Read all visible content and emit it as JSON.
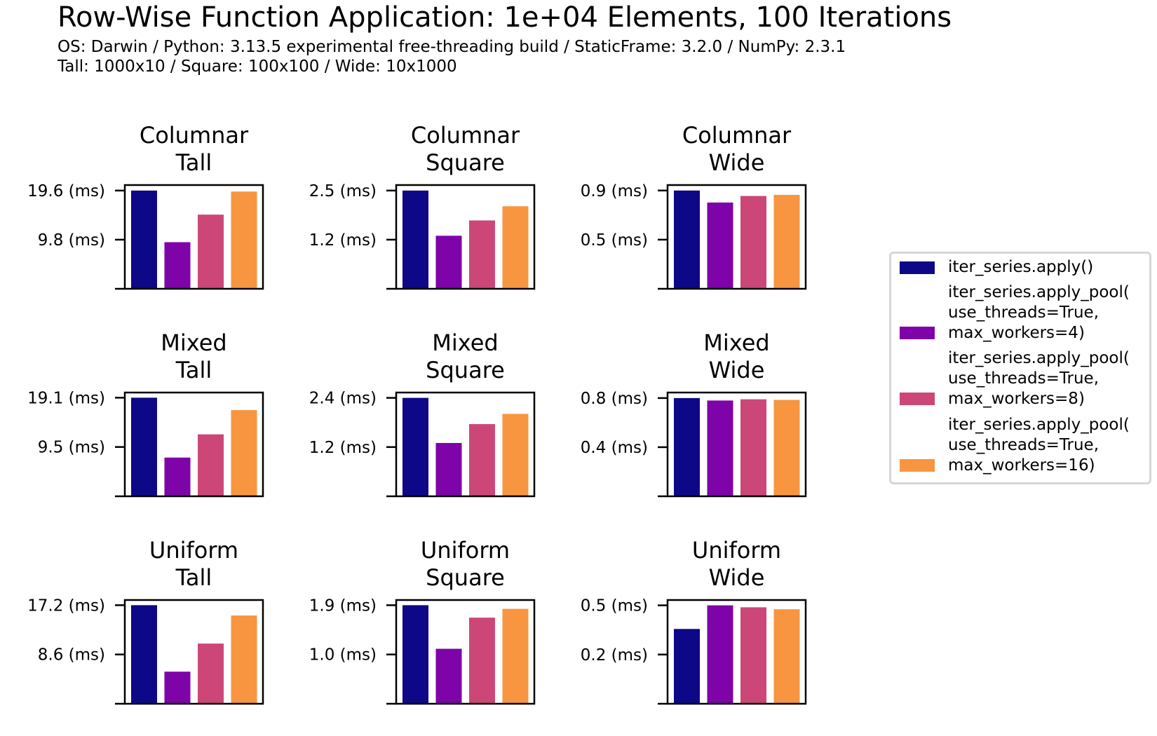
{
  "title": "Row-Wise Function Application: 1e+04 Elements, 100 Iterations",
  "subtitle_line1": "OS: Darwin / Python: 3.13.5 experimental free-threading build / StaticFrame: 3.2.0 / NumPy: 2.3.1",
  "subtitle_line2": "Tall: 1000x10 / Square: 100x100 / Wide: 10x1000",
  "legend": [
    {
      "label": "iter_series.apply()",
      "color": "#0d0887"
    },
    {
      "label": "iter_series.apply_pool(\nuse_threads=True,\nmax_workers=4)",
      "color": "#7e03a8"
    },
    {
      "label": "iter_series.apply_pool(\nuse_threads=True,\nmax_workers=8)",
      "color": "#cc4778"
    },
    {
      "label": "iter_series.apply_pool(\nuse_threads=True,\nmax_workers=16)",
      "color": "#f89540"
    }
  ],
  "chart_data": [
    {
      "type": "bar",
      "title": "Columnar\nTall",
      "yticks": [
        9.8,
        19.6
      ],
      "ytick_labels": [
        "9.8 (ms)",
        "19.6 (ms)"
      ],
      "ylim": [
        0,
        20.7
      ],
      "values": [
        19.6,
        9.3,
        14.8,
        19.4
      ]
    },
    {
      "type": "bar",
      "title": "Columnar\nSquare",
      "yticks": [
        1.25,
        2.5
      ],
      "ytick_labels": [
        "1.2 (ms)",
        "2.5 (ms)"
      ],
      "ylim": [
        0,
        2.64
      ],
      "values": [
        2.5,
        1.35,
        1.74,
        2.1
      ]
    },
    {
      "type": "bar",
      "title": "Columnar\nWide",
      "yticks": [
        0.45,
        0.9
      ],
      "ytick_labels": [
        "0.5 (ms)",
        "0.9 (ms)"
      ],
      "ylim": [
        0,
        0.95
      ],
      "values": [
        0.9,
        0.79,
        0.85,
        0.86
      ]
    },
    {
      "type": "bar",
      "title": "Mixed\nTall",
      "yticks": [
        9.55,
        19.1
      ],
      "ytick_labels": [
        "9.5 (ms)",
        "19.1 (ms)"
      ],
      "ylim": [
        0,
        20.1
      ],
      "values": [
        19.1,
        7.5,
        12.0,
        16.7
      ]
    },
    {
      "type": "bar",
      "title": "Mixed\nSquare",
      "yticks": [
        1.2,
        2.4
      ],
      "ytick_labels": [
        "1.2 (ms)",
        "2.4 (ms)"
      ],
      "ylim": [
        0,
        2.53
      ],
      "values": [
        2.4,
        1.3,
        1.76,
        2.01
      ]
    },
    {
      "type": "bar",
      "title": "Mixed\nWide",
      "yticks": [
        0.4,
        0.8
      ],
      "ytick_labels": [
        "0.4 (ms)",
        "0.8 (ms)"
      ],
      "ylim": [
        0,
        0.845
      ],
      "values": [
        0.8,
        0.78,
        0.79,
        0.785
      ]
    },
    {
      "type": "bar",
      "title": "Uniform\nTall",
      "yticks": [
        8.6,
        17.2
      ],
      "ytick_labels": [
        "8.6 (ms)",
        "17.2 (ms)"
      ],
      "ylim": [
        0,
        18.1
      ],
      "values": [
        17.2,
        5.6,
        10.5,
        15.4
      ]
    },
    {
      "type": "bar",
      "title": "Uniform\nSquare",
      "yticks": [
        0.95,
        1.9
      ],
      "ytick_labels": [
        "1.0 (ms)",
        "1.9 (ms)"
      ],
      "ylim": [
        0,
        2.0
      ],
      "values": [
        1.9,
        1.06,
        1.66,
        1.83
      ]
    },
    {
      "type": "bar",
      "title": "Uniform\nWide",
      "yticks": [
        0.25,
        0.5
      ],
      "ytick_labels": [
        "0.2 (ms)",
        "0.5 (ms)"
      ],
      "ylim": [
        0,
        0.527
      ],
      "values": [
        0.38,
        0.5,
        0.49,
        0.48
      ]
    }
  ]
}
